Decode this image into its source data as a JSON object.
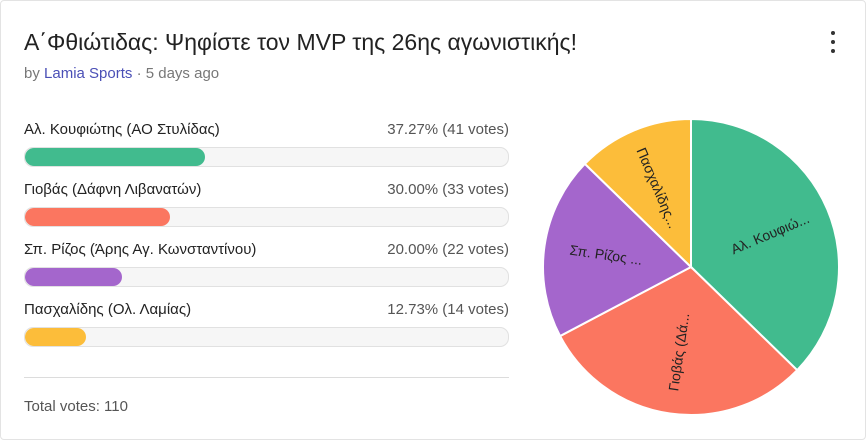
{
  "poll": {
    "title": "Α΄Φθιώτιδας: Ψηφίστε τον MVP της 26ης αγωνιστικής!",
    "by_prefix": "by",
    "author": "Lamia Sports",
    "separator": "·",
    "time_ago": "5 days ago",
    "menu_icon": "more-vertical-icon",
    "total_votes": "Total votes: 110"
  },
  "options": [
    {
      "name": "Αλ. Κουφιώτης (ΑΟ Στυλίδας)",
      "pct_label": "37.27% (41 votes)",
      "percent": 37.27,
      "votes": 41,
      "color": "#41bb8e",
      "pie_label": "Αλ. Κουφιώ..."
    },
    {
      "name": "Γιοβάς (Δάφνη Λιβανατών)",
      "pct_label": "30.00% (33 votes)",
      "percent": 30.0,
      "votes": 33,
      "color": "#fb7660",
      "pie_label": "Γιοβάς (Δά..."
    },
    {
      "name": "Σπ. Ρίζος (Άρης Αγ. Κωνσταντίνου)",
      "pct_label": "20.00% (22 votes)",
      "percent": 20.0,
      "votes": 22,
      "color": "#a466cc",
      "pie_label": "Σπ. Ρίζος ..."
    },
    {
      "name": "Πασχαλίδης (Ολ. Λαμίας)",
      "pct_label": "12.73% (14 votes)",
      "percent": 12.73,
      "votes": 14,
      "color": "#fcbd3a",
      "pie_label": "Πασχαλίδης..."
    }
  ]
}
